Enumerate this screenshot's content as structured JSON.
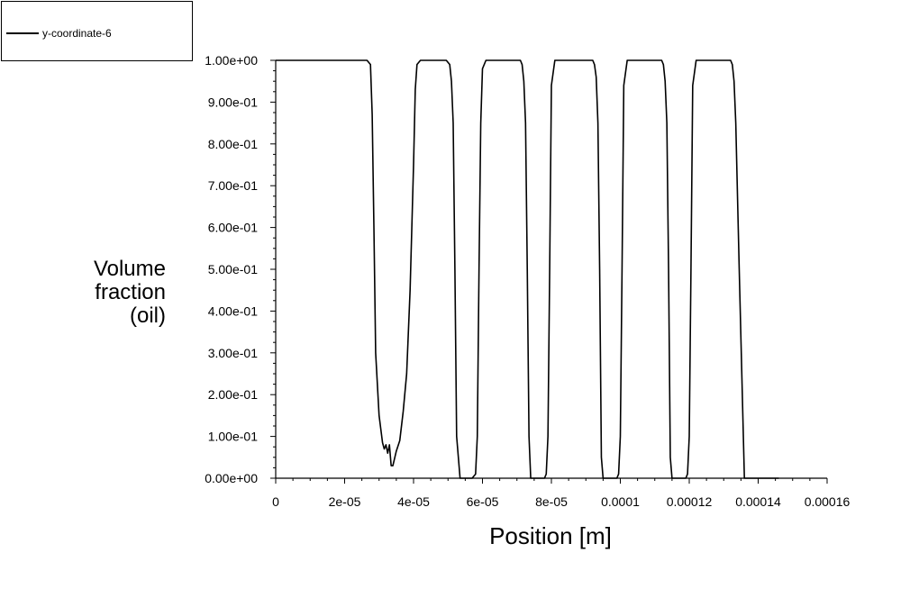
{
  "legend": {
    "label": "y-coordinate-6"
  },
  "chart_data": {
    "type": "line",
    "xlabel": "Position [m]",
    "ylabel_lines": [
      "Volume",
      "fraction",
      "(oil)"
    ],
    "xlim": [
      0,
      0.00016
    ],
    "ylim": [
      0,
      1
    ],
    "grid": false,
    "legend_position": "top-left",
    "x_ticks": [
      "0",
      "2e-05",
      "4e-05",
      "6e-05",
      "8e-05",
      "0.0001",
      "0.00012",
      "0.00014",
      "0.00016"
    ],
    "x_tick_values": [
      0,
      2e-05,
      4e-05,
      6e-05,
      8e-05,
      0.0001,
      0.00012,
      0.00014,
      0.00016
    ],
    "y_ticks": [
      "0.00e+00",
      "1.00e-01",
      "2.00e-01",
      "3.00e-01",
      "4.00e-01",
      "5.00e-01",
      "6.00e-01",
      "7.00e-01",
      "8.00e-01",
      "9.00e-01",
      "1.00e+00"
    ],
    "y_tick_values": [
      0,
      0.1,
      0.2,
      0.3,
      0.4,
      0.5,
      0.6,
      0.7,
      0.8,
      0.9,
      1.0
    ],
    "series": [
      {
        "name": "y-coordinate-6",
        "color": "#000000",
        "x": [
          0,
          2.65e-05,
          2.75e-05,
          2.8e-05,
          2.85e-05,
          2.9e-05,
          3e-05,
          3.1e-05,
          3.15e-05,
          3.2e-05,
          3.25e-05,
          3.3e-05,
          3.35e-05,
          3.4e-05,
          3.5e-05,
          3.6e-05,
          3.7e-05,
          3.8e-05,
          3.9e-05,
          4e-05,
          4.05e-05,
          4.1e-05,
          4.2e-05,
          4.95e-05,
          5.05e-05,
          5.1e-05,
          5.15e-05,
          5.2e-05,
          5.25e-05,
          5.35e-05,
          5.7e-05,
          5.8e-05,
          5.85e-05,
          5.9e-05,
          5.95e-05,
          6e-05,
          6.1e-05,
          7.1e-05,
          7.15e-05,
          7.2e-05,
          7.25e-05,
          7.3e-05,
          7.35e-05,
          7.4e-05,
          7.8e-05,
          7.85e-05,
          7.9e-05,
          7.95e-05,
          8e-05,
          8.1e-05,
          9.2e-05,
          9.25e-05,
          9.3e-05,
          9.35e-05,
          9.4e-05,
          9.45e-05,
          9.5e-05,
          9.9e-05,
          9.95e-05,
          0.0001,
          0.0001005,
          0.000101,
          0.000102,
          0.000112,
          0.0001125,
          0.000113,
          0.0001135,
          0.000114,
          0.0001145,
          0.000115,
          0.000119,
          0.0001195,
          0.00012,
          0.0001205,
          0.000121,
          0.000122,
          0.000132,
          0.0001325,
          0.000133,
          0.0001335,
          0.0001345,
          0.000136,
          0.000145,
          0.000146
        ],
        "y": [
          1.0,
          1.0,
          0.99,
          0.87,
          0.6,
          0.3,
          0.15,
          0.085,
          0.07,
          0.08,
          0.06,
          0.08,
          0.03,
          0.03,
          0.065,
          0.09,
          0.16,
          0.25,
          0.45,
          0.75,
          0.93,
          0.99,
          1.0,
          1.0,
          0.99,
          0.95,
          0.85,
          0.5,
          0.1,
          0.0,
          0.0,
          0.01,
          0.1,
          0.5,
          0.85,
          0.98,
          1.0,
          1.0,
          0.99,
          0.95,
          0.85,
          0.5,
          0.1,
          0.0,
          0.0,
          0.01,
          0.1,
          0.5,
          0.94,
          1.0,
          1.0,
          0.99,
          0.96,
          0.85,
          0.5,
          0.05,
          0.0,
          0.0,
          0.01,
          0.1,
          0.5,
          0.94,
          1.0,
          1.0,
          0.99,
          0.95,
          0.85,
          0.5,
          0.05,
          0.0,
          0.0,
          0.01,
          0.1,
          0.5,
          0.94,
          1.0,
          1.0,
          0.99,
          0.95,
          0.85,
          0.5,
          0.0,
          0.0,
          0.0
        ]
      }
    ]
  }
}
